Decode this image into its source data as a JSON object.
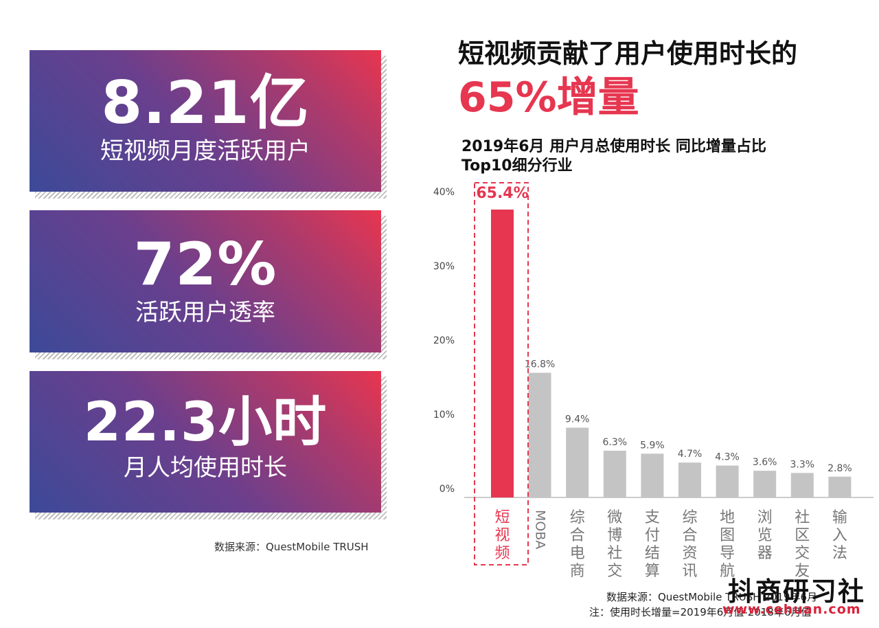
{
  "cards": [
    {
      "value": "8.21亿",
      "label": "短视频月度活跃用户"
    },
    {
      "value": "72%",
      "label": "活跃用户透率"
    },
    {
      "value": "22.3小时",
      "label": "月人均使用时长"
    }
  ],
  "left_source": "数据来源：QuestMobile TRUSH",
  "headline": {
    "line1": "短视频贡献了用户使用时长的",
    "line2": "65%增量"
  },
  "chart_title": {
    "line1": "2019年6月 用户月总使用时长 同比增量占比",
    "line2": "Top10细分行业"
  },
  "chart_data": {
    "type": "bar",
    "title": "2019年6月 用户月总使用时长 同比增量占比 Top10细分行业",
    "categories": [
      "短视频",
      "MOBA",
      "综合电商",
      "微博社交",
      "支付结算",
      "综合资讯",
      "地图导航",
      "浏览器",
      "社区交友",
      "输入法"
    ],
    "values": [
      65.4,
      16.8,
      9.4,
      6.3,
      5.9,
      4.7,
      4.3,
      3.6,
      3.3,
      2.8
    ],
    "value_labels": [
      "65.4%",
      "16.8%",
      "9.4%",
      "6.3%",
      "5.9%",
      "4.7%",
      "4.3%",
      "3.6%",
      "3.3%",
      "2.8%"
    ],
    "ylim": [
      0,
      40
    ],
    "y_ticks": [
      "0%",
      "10%",
      "20%",
      "30%",
      "40%"
    ],
    "ylabel": "",
    "xlabel": "",
    "highlight_index": 0,
    "axis_break_note": "highlighted bar exceeds axis max",
    "grid": false
  },
  "colors": {
    "highlight": "#e63650",
    "bar": "#c4c4c4",
    "card_start": "#3c4a98",
    "card_end": "#e8354f"
  },
  "footer": {
    "source": "数据来源：QuestMobile TRUSH 2019年6月",
    "note": "注：使用时长增量=2019年6月值-2018年6月值"
  },
  "watermark": {
    "text": "抖商研习社",
    "url": "www.cehuan.com"
  }
}
